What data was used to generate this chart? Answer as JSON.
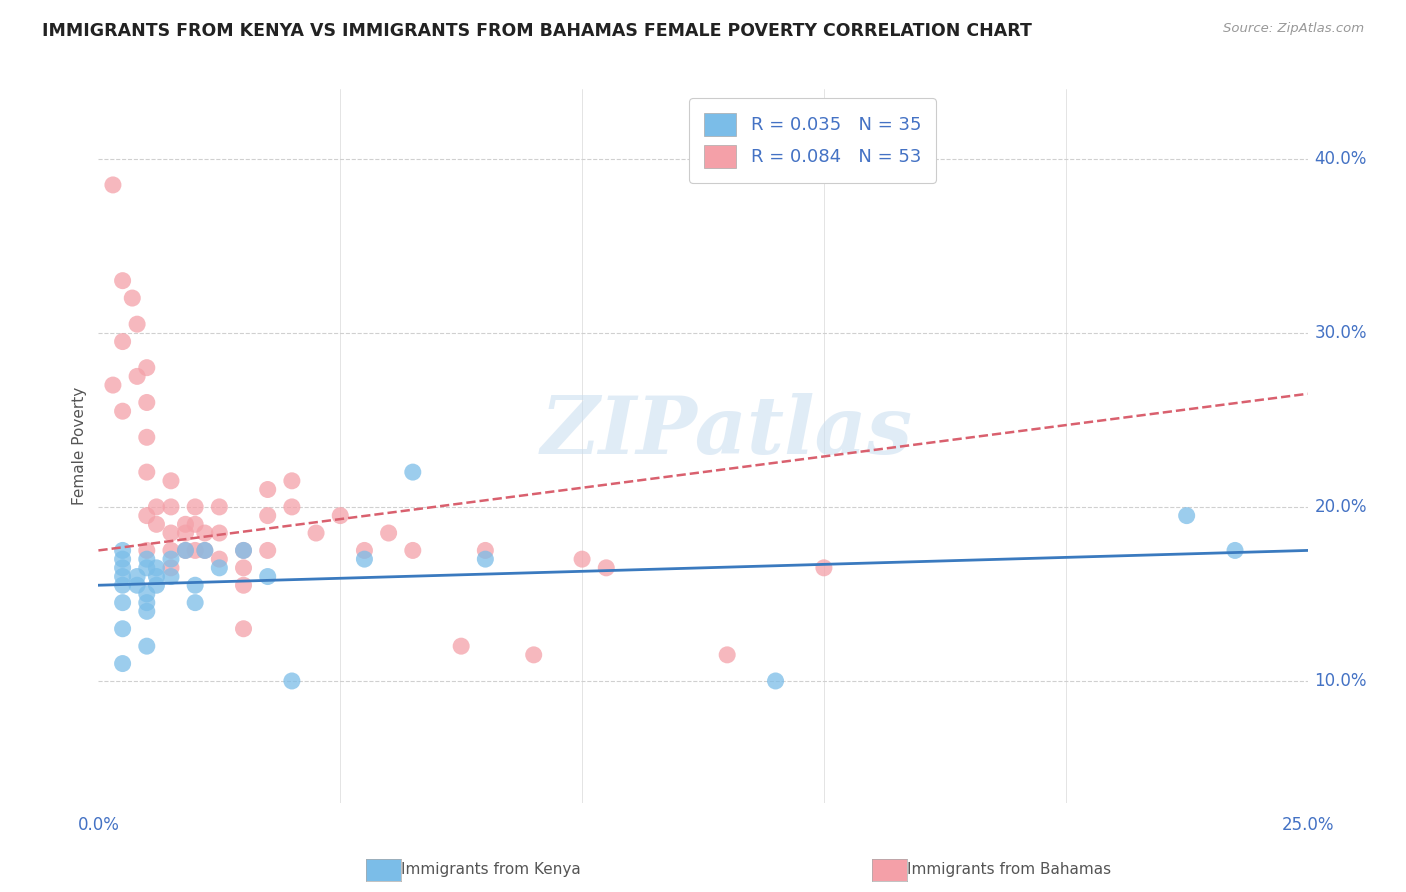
{
  "title": "IMMIGRANTS FROM KENYA VS IMMIGRANTS FROM BAHAMAS FEMALE POVERTY CORRELATION CHART",
  "source": "Source: ZipAtlas.com",
  "ylabel": "Female Poverty",
  "xlim": [
    0.0,
    0.25
  ],
  "ylim": [
    0.03,
    0.44
  ],
  "legend_kenya_R": "R = 0.035",
  "legend_kenya_N": "N = 35",
  "legend_bahamas_R": "R = 0.084",
  "legend_bahamas_N": "N = 53",
  "kenya_color": "#7bbde8",
  "bahamas_color": "#f4a0a8",
  "kenya_line_color": "#3a7abf",
  "bahamas_line_color": "#d9606e",
  "watermark_text": "ZIPatlas",
  "kenya_scatter_x": [
    0.005,
    0.005,
    0.005,
    0.005,
    0.005,
    0.005,
    0.005,
    0.005,
    0.008,
    0.008,
    0.01,
    0.01,
    0.01,
    0.01,
    0.01,
    0.01,
    0.012,
    0.012,
    0.012,
    0.015,
    0.015,
    0.018,
    0.02,
    0.02,
    0.022,
    0.025,
    0.03,
    0.035,
    0.04,
    0.055,
    0.065,
    0.08,
    0.14,
    0.225,
    0.235
  ],
  "kenya_scatter_y": [
    0.155,
    0.16,
    0.165,
    0.17,
    0.175,
    0.145,
    0.13,
    0.11,
    0.155,
    0.16,
    0.165,
    0.17,
    0.15,
    0.145,
    0.14,
    0.12,
    0.16,
    0.155,
    0.165,
    0.17,
    0.16,
    0.175,
    0.155,
    0.145,
    0.175,
    0.165,
    0.175,
    0.16,
    0.1,
    0.17,
    0.22,
    0.17,
    0.1,
    0.195,
    0.175
  ],
  "bahamas_scatter_x": [
    0.003,
    0.003,
    0.005,
    0.005,
    0.005,
    0.007,
    0.008,
    0.008,
    0.01,
    0.01,
    0.01,
    0.01,
    0.01,
    0.01,
    0.012,
    0.012,
    0.015,
    0.015,
    0.015,
    0.015,
    0.015,
    0.018,
    0.018,
    0.018,
    0.02,
    0.02,
    0.02,
    0.022,
    0.022,
    0.025,
    0.025,
    0.025,
    0.03,
    0.03,
    0.03,
    0.03,
    0.035,
    0.035,
    0.035,
    0.04,
    0.04,
    0.045,
    0.05,
    0.055,
    0.06,
    0.065,
    0.075,
    0.08,
    0.09,
    0.1,
    0.105,
    0.13,
    0.15
  ],
  "bahamas_scatter_y": [
    0.385,
    0.27,
    0.33,
    0.295,
    0.255,
    0.32,
    0.275,
    0.305,
    0.28,
    0.26,
    0.24,
    0.22,
    0.195,
    0.175,
    0.2,
    0.19,
    0.215,
    0.2,
    0.185,
    0.175,
    0.165,
    0.19,
    0.185,
    0.175,
    0.2,
    0.19,
    0.175,
    0.185,
    0.175,
    0.2,
    0.185,
    0.17,
    0.175,
    0.165,
    0.155,
    0.13,
    0.21,
    0.195,
    0.175,
    0.215,
    0.2,
    0.185,
    0.195,
    0.175,
    0.185,
    0.175,
    0.12,
    0.175,
    0.115,
    0.17,
    0.165,
    0.115,
    0.165
  ],
  "kenya_trend_x": [
    0.0,
    0.25
  ],
  "kenya_trend_y": [
    0.155,
    0.175
  ],
  "bahamas_trend_x": [
    0.0,
    0.25
  ],
  "bahamas_trend_y": [
    0.175,
    0.265
  ],
  "background_color": "#ffffff",
  "grid_color": "#d0d0d0",
  "title_color": "#222222",
  "tick_color": "#4472c4",
  "axis_text_color": "#555555"
}
